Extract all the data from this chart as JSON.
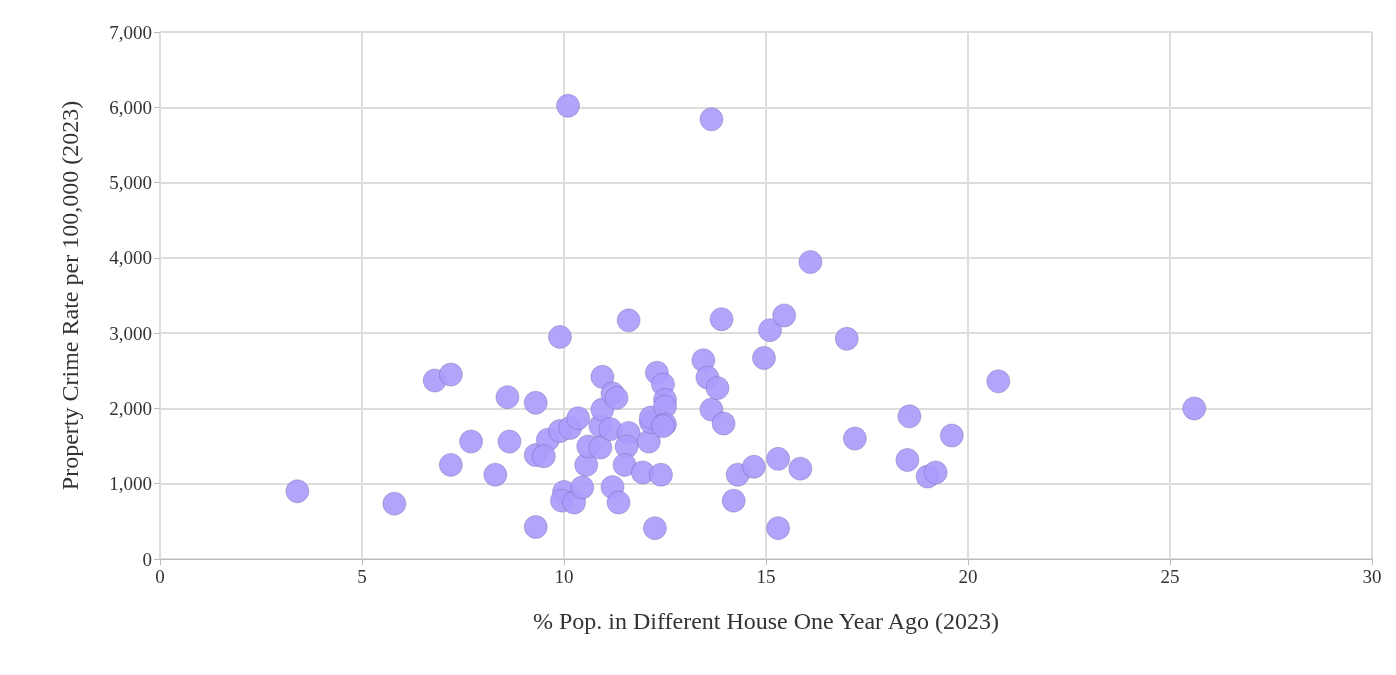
{
  "chart_data": {
    "type": "scatter",
    "xlabel": "% Pop. in Different House One Year Ago (2023)",
    "ylabel": "Property Crime Rate per 100,000 (2023)",
    "x": [
      3.4,
      5.8,
      6.8,
      7.2,
      7.2,
      7.7,
      8.3,
      8.6,
      8.65,
      9.3,
      9.3,
      9.3,
      9.6,
      9.5,
      9.9,
      9.9,
      10.0,
      9.95,
      10.1,
      10.15,
      10.35,
      10.25,
      10.45,
      10.55,
      10.6,
      10.95,
      10.9,
      10.9,
      10.95,
      11.15,
      11.2,
      11.2,
      11.3,
      11.35,
      11.6,
      11.6,
      11.55,
      11.5,
      11.95,
      12.1,
      12.15,
      12.15,
      12.25,
      12.3,
      12.4,
      12.45,
      12.5,
      12.5,
      12.5,
      12.45,
      13.45,
      13.55,
      13.65,
      13.65,
      13.8,
      13.9,
      13.95,
      14.2,
      14.3,
      14.7,
      14.95,
      15.1,
      15.45,
      15.3,
      15.3,
      15.85,
      16.1,
      17.0,
      17.2,
      18.5,
      18.55,
      19.0,
      19.2,
      19.6,
      20.75,
      25.6
    ],
    "series": [
      {
        "color": "#ab9bfb",
        "values": [
          900,
          735,
          2370,
          2450,
          1250,
          1560,
          1120,
          2150,
          1560,
          2075,
          425,
          1380,
          1585,
          1365,
          2950,
          1700,
          890,
          775,
          6020,
          1740,
          1870,
          750,
          950,
          1250,
          1495,
          2420,
          1765,
          1480,
          1985,
          1725,
          955,
          2200,
          2140,
          750,
          3170,
          1675,
          1495,
          1250,
          1150,
          1560,
          1820,
          1880,
          410,
          2475,
          1120,
          2320,
          2115,
          2025,
          1790,
          1765,
          2640,
          2410,
          5840,
          1985,
          2270,
          3185,
          1800,
          775,
          1120,
          1225,
          2670,
          3040,
          3235,
          1330,
          410,
          1200,
          3945,
          2925,
          1600,
          1315,
          1895,
          1095,
          1150,
          1640,
          2360,
          2000
        ]
      }
    ],
    "xlim": [
      0,
      30
    ],
    "xticks": [
      0,
      5,
      10,
      15,
      20,
      25,
      30
    ],
    "ylim": [
      0,
      7000
    ],
    "yticks": [
      0,
      {
        "value": 1000,
        "label": "1,000"
      },
      {
        "value": 2000,
        "label": "2,000"
      },
      {
        "value": 3000,
        "label": "3,000"
      },
      {
        "value": 4000,
        "label": "4,000"
      },
      {
        "value": 5000,
        "label": "5,000"
      },
      {
        "value": 6000,
        "label": "6,000"
      },
      {
        "value": 7000,
        "label": "7,000"
      }
    ],
    "grid": true,
    "marker": "circle"
  }
}
